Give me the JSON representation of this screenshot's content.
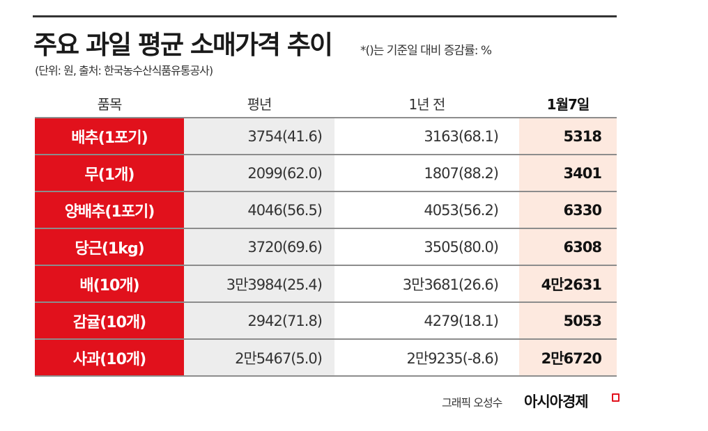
{
  "header": {
    "title": "주요 과일 평균 소매가격 추이",
    "note": "*()는 기준일 대비 증감률: %",
    "subtitle": "(단위: 원, 출처: 한국농수산식품유통공사)"
  },
  "table": {
    "columns": [
      "품목",
      "평년",
      "1년 전",
      "1월7일"
    ],
    "rows": [
      {
        "item": "배추(1포기)",
        "avg": "3754(41.6)",
        "prev": "3163(68.1)",
        "now": "5318"
      },
      {
        "item": "무(1개)",
        "avg": "2099(62.0)",
        "prev": "1807(88.2)",
        "now": "3401"
      },
      {
        "item": "양배추(1포기)",
        "avg": "4046(56.5)",
        "prev": "4053(56.2)",
        "now": "6330"
      },
      {
        "item": "당근(1kg)",
        "avg": "3720(69.6)",
        "prev": "3505(80.0)",
        "now": "6308"
      },
      {
        "item": "배(10개)",
        "avg": "3만3984(25.4)",
        "prev": "3만3681(26.6)",
        "now": "4만2631"
      },
      {
        "item": "감귤(10개)",
        "avg": "2942(71.8)",
        "prev": "4279(18.1)",
        "now": "5053"
      },
      {
        "item": "사과(10개)",
        "avg": "2만5467(5.0)",
        "prev": "2만9235(-8.6)",
        "now": "2만6720"
      }
    ]
  },
  "footer": {
    "credit": "그래픽 오성수",
    "brand": "아시아경제"
  },
  "colors": {
    "item_bg": "#e1111c",
    "avg_bg": "#ededed",
    "now_bg": "#fde9df"
  }
}
